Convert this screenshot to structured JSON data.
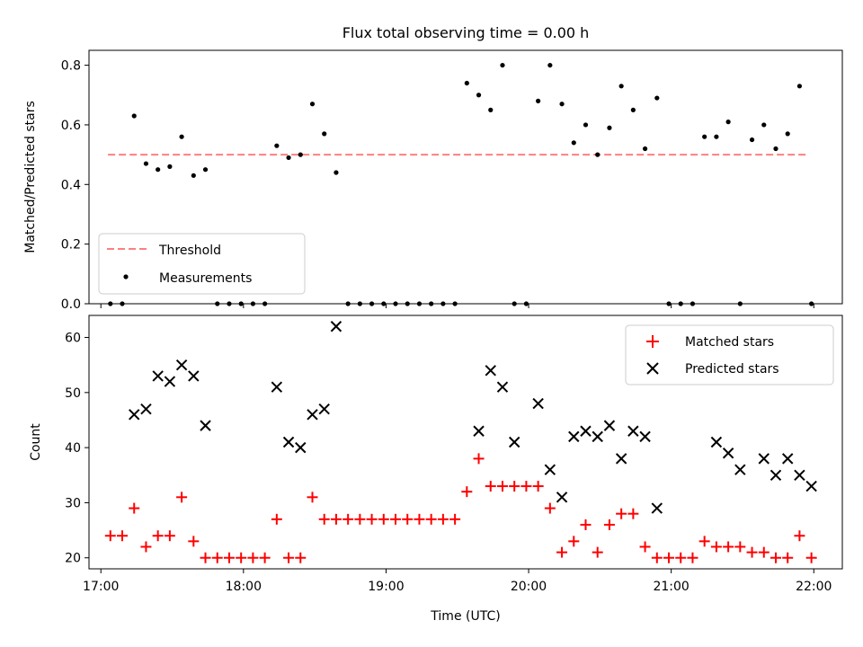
{
  "chart_data": [
    {
      "type": "scatter",
      "title": "Flux total observing time = 0.00 h",
      "xlabel": "",
      "ylabel": "Matched/Predicted stars",
      "xlim": [
        "16:55",
        "22:12"
      ],
      "ylim": [
        0,
        0.85
      ],
      "y_ticks": [
        "0.0",
        "0.2",
        "0.4",
        "0.6",
        "0.8"
      ],
      "x_ticks": [
        "17:00",
        "18:00",
        "19:00",
        "20:00",
        "21:00",
        "22:00"
      ],
      "show_x_tick_labels": false,
      "legend_position": "lower-left",
      "colors": {
        "threshold": "#ff7f7f",
        "measurements": "#000000"
      },
      "threshold": {
        "name": "Threshold",
        "value": 0.5,
        "x_start": "17:03",
        "x_end": "21:57"
      },
      "series": [
        {
          "name": "Measurements",
          "x": [
            "17:04",
            "17:09",
            "17:14",
            "17:19",
            "17:24",
            "17:29",
            "17:34",
            "17:39",
            "17:44",
            "17:49",
            "17:54",
            "17:59",
            "18:04",
            "18:09",
            "18:14",
            "18:19",
            "18:24",
            "18:29",
            "18:34",
            "18:39",
            "18:44",
            "18:49",
            "18:54",
            "18:59",
            "19:04",
            "19:09",
            "19:14",
            "19:19",
            "19:24",
            "19:29",
            "19:34",
            "19:39",
            "19:44",
            "19:49",
            "19:54",
            "19:59",
            "20:04",
            "20:09",
            "20:14",
            "20:19",
            "20:24",
            "20:29",
            "20:34",
            "20:39",
            "20:44",
            "20:49",
            "20:54",
            "20:59",
            "21:04",
            "21:09",
            "21:14",
            "21:19",
            "21:24",
            "21:29",
            "21:34",
            "21:39",
            "21:44",
            "21:49",
            "21:54",
            "21:59"
          ],
          "values": [
            0,
            0,
            0.63,
            0.47,
            0.45,
            0.46,
            0.56,
            0.43,
            0.45,
            0,
            0,
            0,
            0,
            0,
            0.53,
            0.49,
            0.5,
            0.67,
            0.57,
            0.44,
            0,
            0,
            0,
            0,
            0,
            0,
            0,
            0,
            0,
            0,
            0.74,
            0.7,
            0.65,
            0.8,
            0,
            0,
            0.68,
            0.8,
            0.67,
            0.54,
            0.6,
            0.5,
            0.59,
            0.73,
            0.65,
            0.52,
            0.69,
            0,
            0,
            0,
            0.56,
            0.56,
            0.61,
            0,
            0.55,
            0.6,
            0.52,
            0.57,
            0.73,
            0
          ]
        }
      ]
    },
    {
      "type": "scatter",
      "title": "",
      "xlabel": "Time (UTC)",
      "ylabel": "Count",
      "xlim": [
        "16:55",
        "22:12"
      ],
      "ylim": [
        18,
        64
      ],
      "y_ticks": [
        "20",
        "30",
        "40",
        "50",
        "60"
      ],
      "x_ticks": [
        "17:00",
        "18:00",
        "19:00",
        "20:00",
        "21:00",
        "22:00"
      ],
      "legend_position": "upper-right",
      "colors": {
        "matched": "#ff0000",
        "predicted": "#000000"
      },
      "series": [
        {
          "name": "Matched stars",
          "marker": "+",
          "x": [
            "17:04",
            "17:09",
            "17:14",
            "17:19",
            "17:24",
            "17:29",
            "17:34",
            "17:39",
            "17:44",
            "17:49",
            "17:54",
            "17:59",
            "18:04",
            "18:09",
            "18:14",
            "18:19",
            "18:24",
            "18:29",
            "18:34",
            "18:39",
            "18:44",
            "18:49",
            "18:54",
            "18:59",
            "19:04",
            "19:09",
            "19:14",
            "19:19",
            "19:24",
            "19:29",
            "19:34",
            "19:39",
            "19:44",
            "19:49",
            "19:54",
            "19:59",
            "20:04",
            "20:09",
            "20:14",
            "20:19",
            "20:24",
            "20:29",
            "20:34",
            "20:39",
            "20:44",
            "20:49",
            "20:54",
            "20:59",
            "21:04",
            "21:09",
            "21:14",
            "21:19",
            "21:24",
            "21:29",
            "21:34",
            "21:39",
            "21:44",
            "21:49",
            "21:54",
            "21:59"
          ],
          "values": [
            24,
            24,
            29,
            22,
            24,
            24,
            31,
            23,
            20,
            20,
            20,
            20,
            20,
            20,
            27,
            20,
            20,
            31,
            27,
            27,
            27,
            27,
            27,
            27,
            27,
            27,
            27,
            27,
            27,
            27,
            32,
            38,
            33,
            33,
            33,
            33,
            33,
            29,
            21,
            23,
            26,
            21,
            26,
            28,
            28,
            22,
            20,
            20,
            20,
            20,
            23,
            22,
            22,
            22,
            21,
            21,
            20,
            20,
            24,
            20
          ]
        },
        {
          "name": "Predicted stars",
          "marker": "x",
          "x": [
            "17:14",
            "17:19",
            "17:24",
            "17:29",
            "17:34",
            "17:39",
            "17:44",
            "18:14",
            "18:19",
            "18:24",
            "18:29",
            "18:34",
            "18:39",
            "19:39",
            "19:44",
            "19:49",
            "19:54",
            "20:04",
            "20:09",
            "20:14",
            "20:19",
            "20:24",
            "20:29",
            "20:34",
            "20:39",
            "20:44",
            "20:49",
            "20:54",
            "21:19",
            "21:24",
            "21:29",
            "21:39",
            "21:44",
            "21:49",
            "21:54",
            "21:59"
          ],
          "values": [
            46,
            47,
            53,
            52,
            55,
            53,
            44,
            51,
            41,
            40,
            46,
            47,
            62,
            43,
            54,
            51,
            41,
            48,
            36,
            31,
            42,
            43,
            42,
            44,
            38,
            43,
            42,
            29,
            41,
            39,
            36,
            38,
            35,
            38,
            35,
            33
          ]
        }
      ]
    }
  ]
}
